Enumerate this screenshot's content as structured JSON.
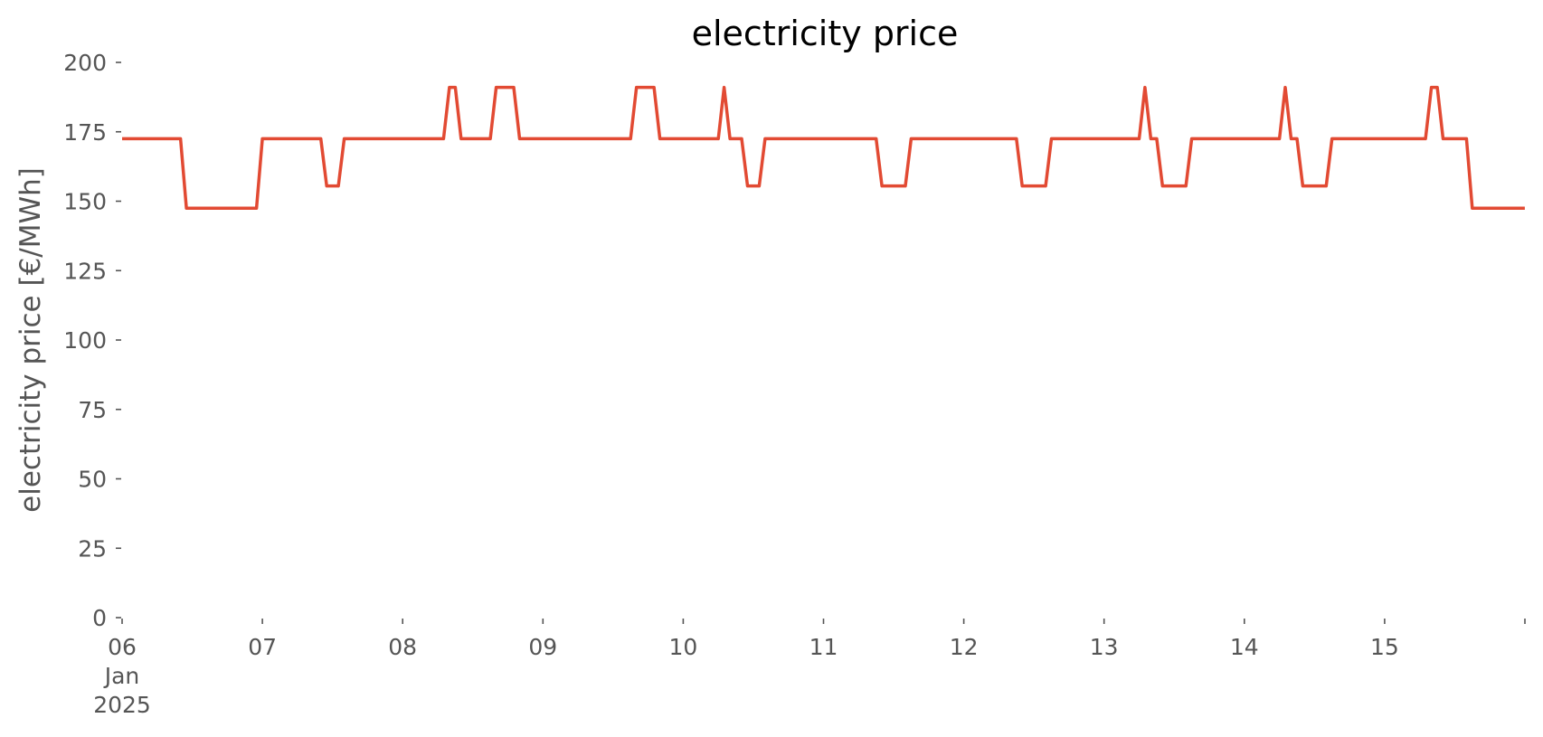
{
  "chart_data": {
    "type": "line",
    "title": "electricity price",
    "xlabel": "",
    "ylabel": "electricity price [€/MWh]",
    "xlim": [
      "2025-01-06 00:00",
      "2025-01-16 00:00"
    ],
    "ylim": [
      0,
      200
    ],
    "yticks": [
      0,
      25,
      50,
      75,
      100,
      125,
      150,
      175,
      200
    ],
    "xticks": [
      {
        "date": "2025-01-06",
        "lines": [
          "06",
          "Jan",
          "2025"
        ]
      },
      {
        "date": "2025-01-07",
        "lines": [
          "07"
        ]
      },
      {
        "date": "2025-01-08",
        "lines": [
          "08"
        ]
      },
      {
        "date": "2025-01-09",
        "lines": [
          "09"
        ]
      },
      {
        "date": "2025-01-10",
        "lines": [
          "10"
        ]
      },
      {
        "date": "2025-01-11",
        "lines": [
          "11"
        ]
      },
      {
        "date": "2025-01-12",
        "lines": [
          "12"
        ]
      },
      {
        "date": "2025-01-13",
        "lines": [
          "13"
        ]
      },
      {
        "date": "2025-01-14",
        "lines": [
          "14"
        ]
      },
      {
        "date": "2025-01-15",
        "lines": [
          "15"
        ]
      },
      {
        "date": "2025-01-16",
        "lines": [
          ""
        ]
      }
    ],
    "grid": false,
    "series": [
      {
        "color": "#e24a33",
        "points": [
          [
            "2025-01-06 00:00",
            172.5
          ],
          [
            "2025-01-06 10:00",
            172.5
          ],
          [
            "2025-01-06 11:00",
            147.5
          ],
          [
            "2025-01-06 23:00",
            147.5
          ],
          [
            "2025-01-07 00:00",
            172.5
          ],
          [
            "2025-01-07 10:00",
            172.5
          ],
          [
            "2025-01-07 11:00",
            155.5
          ],
          [
            "2025-01-07 13:00",
            155.5
          ],
          [
            "2025-01-07 14:00",
            172.5
          ],
          [
            "2025-01-08 07:00",
            172.5
          ],
          [
            "2025-01-08 08:00",
            191
          ],
          [
            "2025-01-08 09:00",
            191
          ],
          [
            "2025-01-08 10:00",
            172.5
          ],
          [
            "2025-01-08 15:00",
            172.5
          ],
          [
            "2025-01-08 16:00",
            191
          ],
          [
            "2025-01-08 19:00",
            191
          ],
          [
            "2025-01-08 20:00",
            172.5
          ],
          [
            "2025-01-09 15:00",
            172.5
          ],
          [
            "2025-01-09 16:00",
            191
          ],
          [
            "2025-01-09 19:00",
            191
          ],
          [
            "2025-01-09 20:00",
            172.5
          ],
          [
            "2025-01-10 06:00",
            172.5
          ],
          [
            "2025-01-10 07:00",
            191
          ],
          [
            "2025-01-10 08:00",
            172.5
          ],
          [
            "2025-01-10 10:00",
            172.5
          ],
          [
            "2025-01-10 11:00",
            155.5
          ],
          [
            "2025-01-10 13:00",
            155.5
          ],
          [
            "2025-01-10 14:00",
            172.5
          ],
          [
            "2025-01-11 09:00",
            172.5
          ],
          [
            "2025-01-11 10:00",
            155.5
          ],
          [
            "2025-01-11 14:00",
            155.5
          ],
          [
            "2025-01-11 15:00",
            172.5
          ],
          [
            "2025-01-12 09:00",
            172.5
          ],
          [
            "2025-01-12 10:00",
            155.5
          ],
          [
            "2025-01-12 14:00",
            155.5
          ],
          [
            "2025-01-12 15:00",
            172.5
          ],
          [
            "2025-01-13 06:00",
            172.5
          ],
          [
            "2025-01-13 07:00",
            191
          ],
          [
            "2025-01-13 08:00",
            172.5
          ],
          [
            "2025-01-13 09:00",
            172.5
          ],
          [
            "2025-01-13 10:00",
            155.5
          ],
          [
            "2025-01-13 14:00",
            155.5
          ],
          [
            "2025-01-13 15:00",
            172.5
          ],
          [
            "2025-01-14 06:00",
            172.5
          ],
          [
            "2025-01-14 07:00",
            191
          ],
          [
            "2025-01-14 08:00",
            172.5
          ],
          [
            "2025-01-14 09:00",
            172.5
          ],
          [
            "2025-01-14 10:00",
            155.5
          ],
          [
            "2025-01-14 14:00",
            155.5
          ],
          [
            "2025-01-14 15:00",
            172.5
          ],
          [
            "2025-01-15 07:00",
            172.5
          ],
          [
            "2025-01-15 08:00",
            191
          ],
          [
            "2025-01-15 09:00",
            191
          ],
          [
            "2025-01-15 10:00",
            172.5
          ],
          [
            "2025-01-15 14:00",
            172.5
          ],
          [
            "2025-01-15 15:00",
            147.5
          ],
          [
            "2025-01-15 23:59",
            147.5
          ]
        ]
      }
    ]
  }
}
